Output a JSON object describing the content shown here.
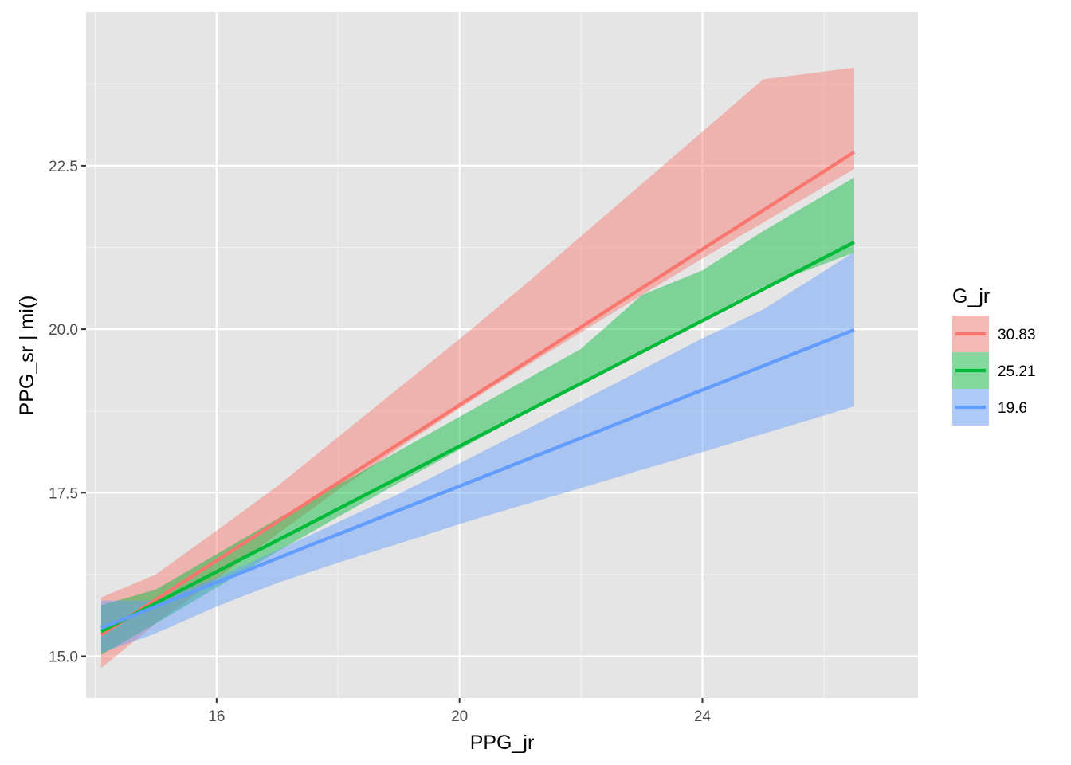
{
  "chart_data": {
    "type": "line",
    "title": "",
    "xlabel": "PPG_jr",
    "ylabel": "PPG_sr | mi()",
    "xlim": [
      13.85,
      27.55
    ],
    "ylim": [
      14.36,
      24.85
    ],
    "x_ticks": [
      16,
      20,
      24
    ],
    "x_tick_labels": [
      "16",
      "20",
      "24"
    ],
    "y_ticks": [
      15.0,
      17.5,
      20.0,
      22.5
    ],
    "y_tick_labels": [
      "15.0",
      "17.5",
      "20.0",
      "22.5"
    ],
    "x_minor_ticks": [
      14,
      18,
      22,
      26
    ],
    "y_minor_ticks": [
      16.25,
      18.75,
      21.25,
      23.75
    ],
    "grid": true,
    "background": "#e5e5e5",
    "legend": {
      "title": "G_jr",
      "placement": "right",
      "entries": [
        "30.83",
        "25.21",
        "19.6"
      ]
    },
    "series": [
      {
        "name": "30.83",
        "color": "#f8766d",
        "x": [
          14.1,
          26.5
        ],
        "y": [
          15.33,
          22.71
        ],
        "band_x": [
          14.1,
          15.0,
          16.0,
          17.0,
          18.0,
          19.0,
          20.0,
          21.0,
          22.0,
          23.0,
          24.0,
          25.0,
          26.5
        ],
        "band_lower": [
          14.82,
          15.5,
          16.18,
          16.87,
          17.54,
          18.18,
          18.79,
          19.38,
          19.95,
          20.52,
          21.08,
          21.63,
          22.45
        ],
        "band_upper": [
          15.9,
          16.25,
          16.92,
          17.6,
          18.35,
          19.1,
          19.85,
          20.62,
          21.42,
          22.22,
          23.02,
          23.82,
          24.0
        ]
      },
      {
        "name": "25.21",
        "color": "#00ba38",
        "x": [
          14.1,
          26.5
        ],
        "y": [
          15.38,
          21.33
        ],
        "band_x": [
          14.1,
          15.0,
          16.0,
          17.0,
          18.0,
          19.0,
          20.0,
          21.0,
          22.0,
          23.0,
          24.0,
          25.0,
          26.5
        ],
        "band_lower": [
          15.02,
          15.5,
          16.05,
          16.6,
          17.13,
          17.65,
          18.16,
          18.67,
          19.17,
          19.67,
          20.16,
          20.65,
          21.17
        ],
        "band_upper": [
          15.78,
          16.02,
          16.56,
          17.1,
          17.62,
          18.14,
          18.66,
          19.18,
          19.7,
          20.52,
          20.9,
          21.5,
          22.32
        ]
      },
      {
        "name": "19.6",
        "color": "#619cff",
        "x": [
          14.1,
          26.5
        ],
        "y": [
          15.43,
          19.99
        ],
        "band_x": [
          14.1,
          15.0,
          16.0,
          17.0,
          18.0,
          19.0,
          20.0,
          21.0,
          22.0,
          23.0,
          24.0,
          25.0,
          26.5
        ],
        "band_lower": [
          15.05,
          15.35,
          15.76,
          16.12,
          16.43,
          16.72,
          17.02,
          17.3,
          17.57,
          17.85,
          18.12,
          18.4,
          18.82
        ],
        "band_upper": [
          15.85,
          15.85,
          16.2,
          16.62,
          17.05,
          17.48,
          17.95,
          18.42,
          18.9,
          19.38,
          19.86,
          20.3,
          21.18
        ]
      }
    ]
  }
}
